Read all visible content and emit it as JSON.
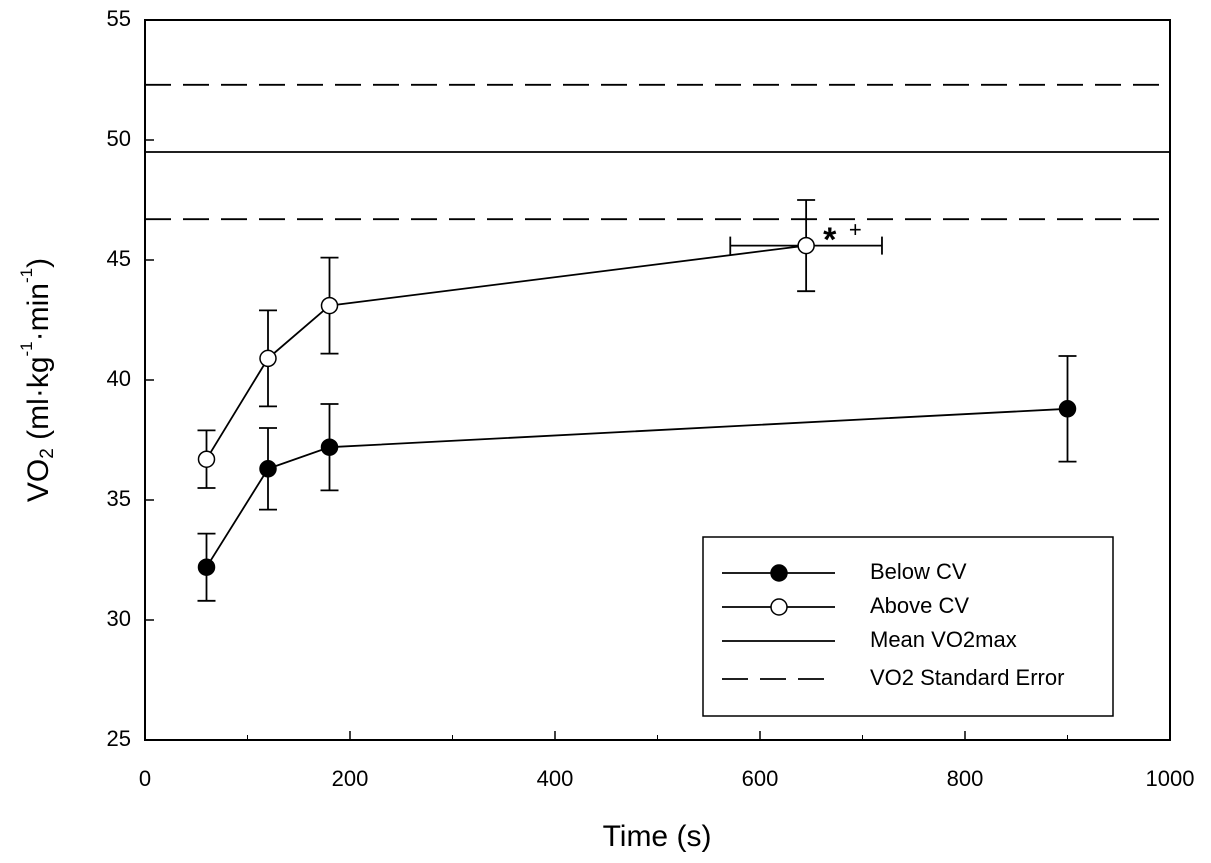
{
  "chart_data": {
    "type": "line",
    "xlabel": "Time (s)",
    "ylabel": [
      "VO",
      "2",
      " (ml·kg",
      "-1",
      "·min",
      "-1",
      ")"
    ],
    "xlim": [
      0,
      1000
    ],
    "xticks": [
      0,
      200,
      400,
      600,
      800,
      1000
    ],
    "xminorticks": [
      100,
      300,
      500,
      700,
      900
    ],
    "ylim": [
      25,
      55
    ],
    "yticks": [
      25,
      30,
      35,
      40,
      45,
      50,
      55
    ],
    "series": [
      {
        "name": "Below CV",
        "color": "#000000",
        "marker_fill": "#000000",
        "x": [
          60,
          120,
          180,
          900
        ],
        "values": [
          32.2,
          36.3,
          37.2,
          38.8
        ],
        "errors": [
          1.4,
          1.7,
          1.8,
          2.2
        ]
      },
      {
        "name": "Above CV",
        "color": "#000000",
        "marker_fill": "#ffffff",
        "x": [
          60,
          120,
          180,
          645
        ],
        "values": [
          36.7,
          40.9,
          43.1,
          45.6
        ],
        "errors": [
          1.2,
          2.0,
          2.0,
          1.9
        ],
        "xerrors": [
          null,
          null,
          null,
          74
        ]
      }
    ],
    "reference_lines": [
      {
        "name": "Mean VO2max",
        "style": "solid",
        "values": [
          49.5
        ]
      },
      {
        "name": "VO2 Standard Error",
        "style": "dashed",
        "values": [
          52.3,
          46.7
        ]
      }
    ],
    "annotations": [
      {
        "text": "*",
        "x": 668,
        "y": 46.0
      },
      {
        "text": "+",
        "x": 693,
        "y": 46.2
      }
    ],
    "legend": "lower right"
  }
}
